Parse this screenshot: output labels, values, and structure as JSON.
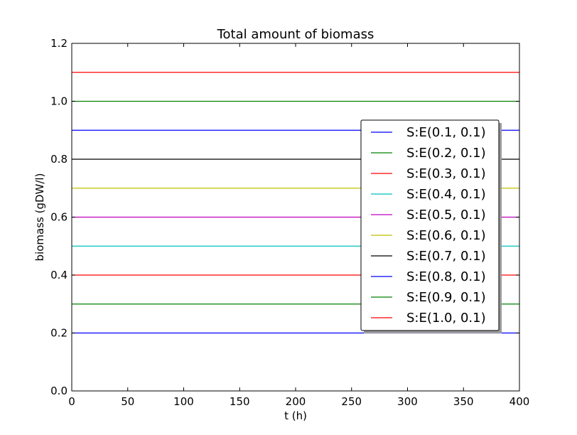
{
  "chart_data": {
    "type": "line",
    "title": "Total amount of biomass",
    "xlabel": "t (h)",
    "ylabel": "biomass (gDW/l)",
    "xlim": [
      0,
      400
    ],
    "ylim": [
      0,
      1.2
    ],
    "xticks": [
      0,
      50,
      100,
      150,
      200,
      250,
      300,
      350,
      400
    ],
    "yticks": [
      0.0,
      0.2,
      0.4,
      0.6,
      0.8,
      1.0,
      1.2
    ],
    "xtick_labels": [
      "0",
      "50",
      "100",
      "150",
      "200",
      "250",
      "300",
      "350",
      "400"
    ],
    "ytick_labels": [
      "0.0",
      "0.2",
      "0.4",
      "0.6",
      "0.8",
      "1.0",
      "1.2"
    ],
    "grid": false,
    "legend_position": "center-right",
    "series": [
      {
        "name": "S:E(0.1, 0.1)",
        "color": "#0000ff",
        "x": [
          0,
          400
        ],
        "y": [
          0.2,
          0.2
        ]
      },
      {
        "name": "S:E(0.2, 0.1)",
        "color": "#008000",
        "x": [
          0,
          400
        ],
        "y": [
          0.3,
          0.3
        ]
      },
      {
        "name": "S:E(0.3, 0.1)",
        "color": "#ff0000",
        "x": [
          0,
          400
        ],
        "y": [
          0.4,
          0.4
        ]
      },
      {
        "name": "S:E(0.4, 0.1)",
        "color": "#00bfbf",
        "x": [
          0,
          400
        ],
        "y": [
          0.5,
          0.5
        ]
      },
      {
        "name": "S:E(0.5, 0.1)",
        "color": "#bf00bf",
        "x": [
          0,
          400
        ],
        "y": [
          0.6,
          0.6
        ]
      },
      {
        "name": "S:E(0.6, 0.1)",
        "color": "#bfbf00",
        "x": [
          0,
          400
        ],
        "y": [
          0.7,
          0.7
        ]
      },
      {
        "name": "S:E(0.7, 0.1)",
        "color": "#000000",
        "x": [
          0,
          400
        ],
        "y": [
          0.8,
          0.8
        ]
      },
      {
        "name": "S:E(0.8, 0.1)",
        "color": "#0000ff",
        "x": [
          0,
          400
        ],
        "y": [
          0.9,
          0.9
        ]
      },
      {
        "name": "S:E(0.9, 0.1)",
        "color": "#008000",
        "x": [
          0,
          400
        ],
        "y": [
          1.0,
          1.0
        ]
      },
      {
        "name": "S:E(1.0, 0.1)",
        "color": "#ff0000",
        "x": [
          0,
          400
        ],
        "y": [
          1.1,
          1.1
        ]
      }
    ]
  }
}
